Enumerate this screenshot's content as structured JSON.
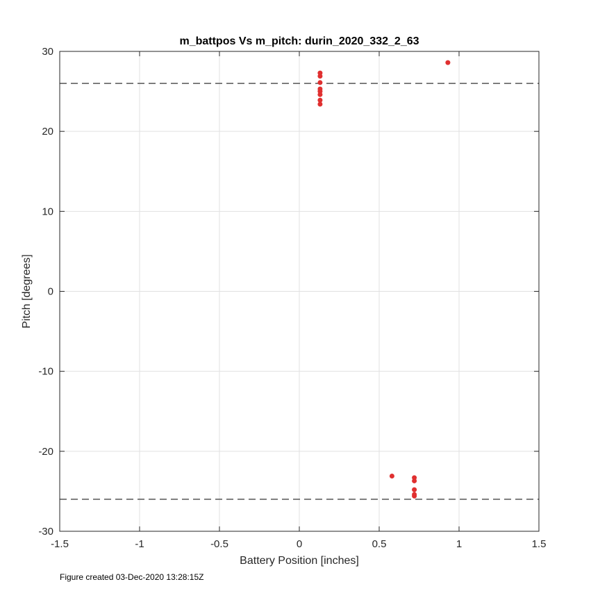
{
  "chart_data": {
    "type": "scatter",
    "title": "m_battpos Vs m_pitch: durin_2020_332_2_63",
    "xlabel": "Battery Position [inches]",
    "ylabel": "Pitch [degrees]",
    "xlim": [
      -1.5,
      1.5
    ],
    "ylim": [
      -30,
      30
    ],
    "xticks": [
      -1.5,
      -1,
      -0.5,
      0,
      0.5,
      1,
      1.5
    ],
    "xtick_labels": [
      "-1.5",
      "-1",
      "-0.5",
      "0",
      "0.5",
      "1",
      "1.5"
    ],
    "yticks": [
      -30,
      -20,
      -10,
      0,
      10,
      20,
      30
    ],
    "ytick_labels": [
      "-30",
      "-20",
      "-10",
      "0",
      "10",
      "20",
      "30"
    ],
    "grid": true,
    "marker_color": "#e03030",
    "reference_lines": [
      {
        "y": 26,
        "style": "dashed",
        "color": "#555555"
      },
      {
        "y": -26,
        "style": "dashed",
        "color": "#555555"
      }
    ],
    "points": [
      {
        "x": 0.13,
        "y": 27.3
      },
      {
        "x": 0.13,
        "y": 26.9
      },
      {
        "x": 0.13,
        "y": 26.1
      },
      {
        "x": 0.13,
        "y": 25.3
      },
      {
        "x": 0.13,
        "y": 25.0
      },
      {
        "x": 0.13,
        "y": 24.6
      },
      {
        "x": 0.13,
        "y": 23.9
      },
      {
        "x": 0.13,
        "y": 23.4
      },
      {
        "x": 0.93,
        "y": 28.6
      },
      {
        "x": 0.58,
        "y": -23.1
      },
      {
        "x": 0.72,
        "y": -23.3
      },
      {
        "x": 0.72,
        "y": -23.7
      },
      {
        "x": 0.72,
        "y": -24.8
      },
      {
        "x": 0.72,
        "y": -25.4
      },
      {
        "x": 0.72,
        "y": -25.6
      }
    ]
  },
  "footnote": "Figure created 03-Dec-2020 13:28:15Z"
}
